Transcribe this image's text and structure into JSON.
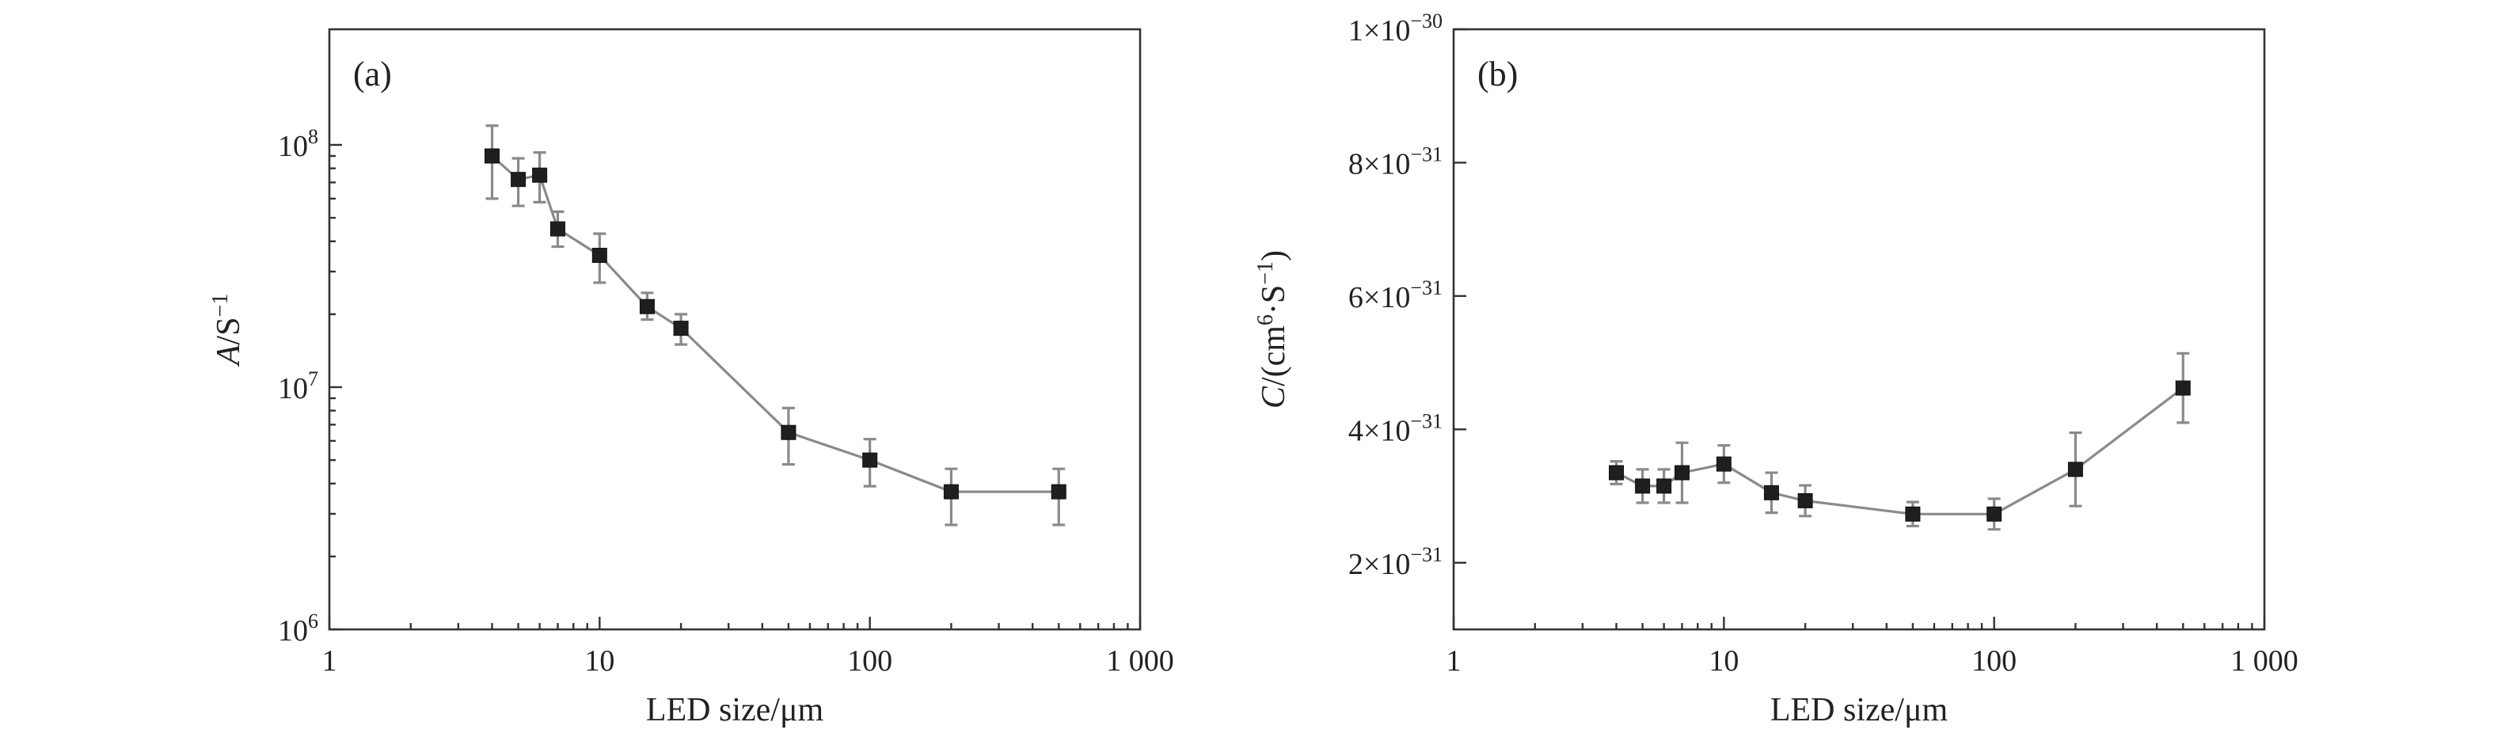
{
  "chart_data": [
    {
      "type": "scatter",
      "panel_label": "(a)",
      "x_scale": "log",
      "y_scale": "log",
      "xlim": [
        1,
        1000
      ],
      "ylim": [
        1000000,
        300000000
      ],
      "x_ticks": [
        {
          "value": 1,
          "label": "1"
        },
        {
          "value": 10,
          "label": "10"
        },
        {
          "value": 100,
          "label": "100"
        },
        {
          "value": 1000,
          "label": "1 000"
        }
      ],
      "y_ticks": [
        {
          "value": 1000000,
          "base": "10",
          "exp": "6"
        },
        {
          "value": 10000000,
          "base": "10",
          "exp": "7"
        },
        {
          "value": 100000000,
          "base": "10",
          "exp": "8"
        }
      ],
      "xlabel": "LED size/μm",
      "ylabel_symbol": "A",
      "ylabel_rest": "/S",
      "ylabel_sup": "−1",
      "grid": false,
      "legend": "none",
      "colors": {
        "line": "#8a8a8a",
        "marker": "#1f1f1f"
      },
      "points": [
        {
          "x": 4,
          "y": 90000000,
          "err_low": 60000000,
          "err_high": 120000000
        },
        {
          "x": 5,
          "y": 72000000,
          "err_low": 56000000,
          "err_high": 88000000
        },
        {
          "x": 6,
          "y": 75000000,
          "err_low": 58000000,
          "err_high": 93000000
        },
        {
          "x": 7,
          "y": 45000000,
          "err_low": 38000000,
          "err_high": 53000000
        },
        {
          "x": 10,
          "y": 35000000,
          "err_low": 27000000,
          "err_high": 43000000
        },
        {
          "x": 15,
          "y": 21500000,
          "err_low": 19000000,
          "err_high": 24500000
        },
        {
          "x": 20,
          "y": 17500000,
          "err_low": 15000000,
          "err_high": 20000000
        },
        {
          "x": 50,
          "y": 6500000,
          "err_low": 4800000,
          "err_high": 8200000
        },
        {
          "x": 100,
          "y": 5000000,
          "err_low": 3900000,
          "err_high": 6100000
        },
        {
          "x": 200,
          "y": 3700000,
          "err_low": 2700000,
          "err_high": 4600000
        },
        {
          "x": 500,
          "y": 3700000,
          "err_low": 2700000,
          "err_high": 4600000
        }
      ]
    },
    {
      "type": "scatter",
      "panel_label": "(b)",
      "x_scale": "log",
      "y_scale": "linear",
      "xlim": [
        1,
        1000
      ],
      "ylim": [
        1e-31,
        1e-30
      ],
      "x_ticks": [
        {
          "value": 1,
          "label": "1"
        },
        {
          "value": 10,
          "label": "10"
        },
        {
          "value": 100,
          "label": "100"
        },
        {
          "value": 1000,
          "label": "1 000"
        }
      ],
      "y_ticks": [
        {
          "value": 2e-31,
          "mant": "2",
          "base": "10",
          "exp": "−31"
        },
        {
          "value": 4e-31,
          "mant": "4",
          "base": "10",
          "exp": "−31"
        },
        {
          "value": 6e-31,
          "mant": "6",
          "base": "10",
          "exp": "−31"
        },
        {
          "value": 8e-31,
          "mant": "8",
          "base": "10",
          "exp": "−31"
        },
        {
          "value": 1e-30,
          "mant": "1",
          "base": "10",
          "exp": "−30"
        }
      ],
      "xlabel": "LED size/μm",
      "ylabel_symbol": "C",
      "ylabel_rest": "/(cm",
      "ylabel_sup1": "6",
      "ylabel_rest2": "·S",
      "ylabel_sup2": "−1",
      "ylabel_end": ")",
      "grid": false,
      "legend": "none",
      "colors": {
        "line": "#8a8a8a",
        "marker": "#1f1f1f"
      },
      "points": [
        {
          "x": 4,
          "y": 3.35e-31,
          "err_low": 3.18e-31,
          "err_high": 3.52e-31
        },
        {
          "x": 5,
          "y": 3.15e-31,
          "err_low": 2.9e-31,
          "err_high": 3.4e-31
        },
        {
          "x": 6,
          "y": 3.15e-31,
          "err_low": 2.9e-31,
          "err_high": 3.4e-31
        },
        {
          "x": 7,
          "y": 3.35e-31,
          "err_low": 2.9e-31,
          "err_high": 3.8e-31
        },
        {
          "x": 10,
          "y": 3.48e-31,
          "err_low": 3.2e-31,
          "err_high": 3.76e-31
        },
        {
          "x": 15,
          "y": 3.05e-31,
          "err_low": 2.75e-31,
          "err_high": 3.35e-31
        },
        {
          "x": 20,
          "y": 2.93e-31,
          "err_low": 2.7e-31,
          "err_high": 3.16e-31
        },
        {
          "x": 50,
          "y": 2.73e-31,
          "err_low": 2.55e-31,
          "err_high": 2.91e-31
        },
        {
          "x": 100,
          "y": 2.73e-31,
          "err_low": 2.5e-31,
          "err_high": 2.96e-31
        },
        {
          "x": 200,
          "y": 3.4e-31,
          "err_low": 2.85e-31,
          "err_high": 3.95e-31
        },
        {
          "x": 500,
          "y": 4.62e-31,
          "err_low": 4.1e-31,
          "err_high": 5.14e-31
        }
      ]
    }
  ]
}
